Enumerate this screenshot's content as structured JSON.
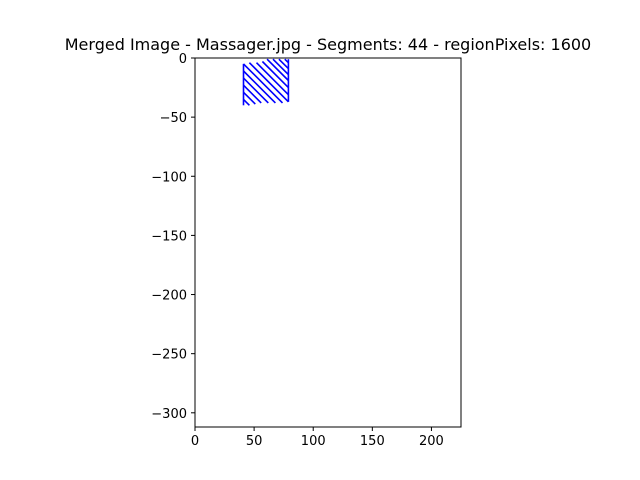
{
  "chart_data": {
    "type": "line",
    "title": "Merged Image - Massager.jpg - Segments: 44 - regionPixels: 1600",
    "xlabel": "",
    "ylabel": "",
    "xlim": [
      0,
      225
    ],
    "ylim": [
      -312,
      0
    ],
    "x_ticks": [
      0,
      50,
      100,
      150,
      200
    ],
    "y_ticks": [
      0,
      -50,
      -100,
      -150,
      -200,
      -250,
      -300
    ],
    "x_tick_labels": [
      "0",
      "50",
      "100",
      "150",
      "200"
    ],
    "y_tick_labels": [
      "0",
      "−50",
      "−100",
      "−150",
      "−200",
      "−250",
      "−300"
    ],
    "grid": false,
    "series_color": "#0000ff",
    "series": [
      {
        "x": [
          41,
          46
        ],
        "y": [
          -35,
          -40
        ]
      },
      {
        "x": [
          41,
          51
        ],
        "y": [
          -29,
          -39
        ]
      },
      {
        "x": [
          41,
          56
        ],
        "y": [
          -23,
          -38
        ]
      },
      {
        "x": [
          41,
          62
        ],
        "y": [
          -17,
          -38
        ]
      },
      {
        "x": [
          41,
          68
        ],
        "y": [
          -11,
          -38
        ]
      },
      {
        "x": [
          41,
          74
        ],
        "y": [
          -5,
          -38
        ]
      },
      {
        "x": [
          46,
          79
        ],
        "y": [
          -4,
          -37
        ]
      },
      {
        "x": [
          52,
          79
        ],
        "y": [
          -4,
          -31
        ]
      },
      {
        "x": [
          57,
          79
        ],
        "y": [
          -3,
          -25
        ]
      },
      {
        "x": [
          61,
          79
        ],
        "y": [
          -1,
          -19
        ]
      },
      {
        "x": [
          66,
          79
        ],
        "y": [
          -1,
          -14
        ]
      },
      {
        "x": [
          71,
          79
        ],
        "y": [
          -1,
          -9
        ]
      },
      {
        "x": [
          76,
          79
        ],
        "y": [
          -1,
          -4
        ]
      },
      {
        "x": [
          41,
          41
        ],
        "y": [
          -5,
          -40
        ]
      },
      {
        "x": [
          79,
          79
        ],
        "y": [
          -1,
          -37
        ]
      }
    ]
  }
}
